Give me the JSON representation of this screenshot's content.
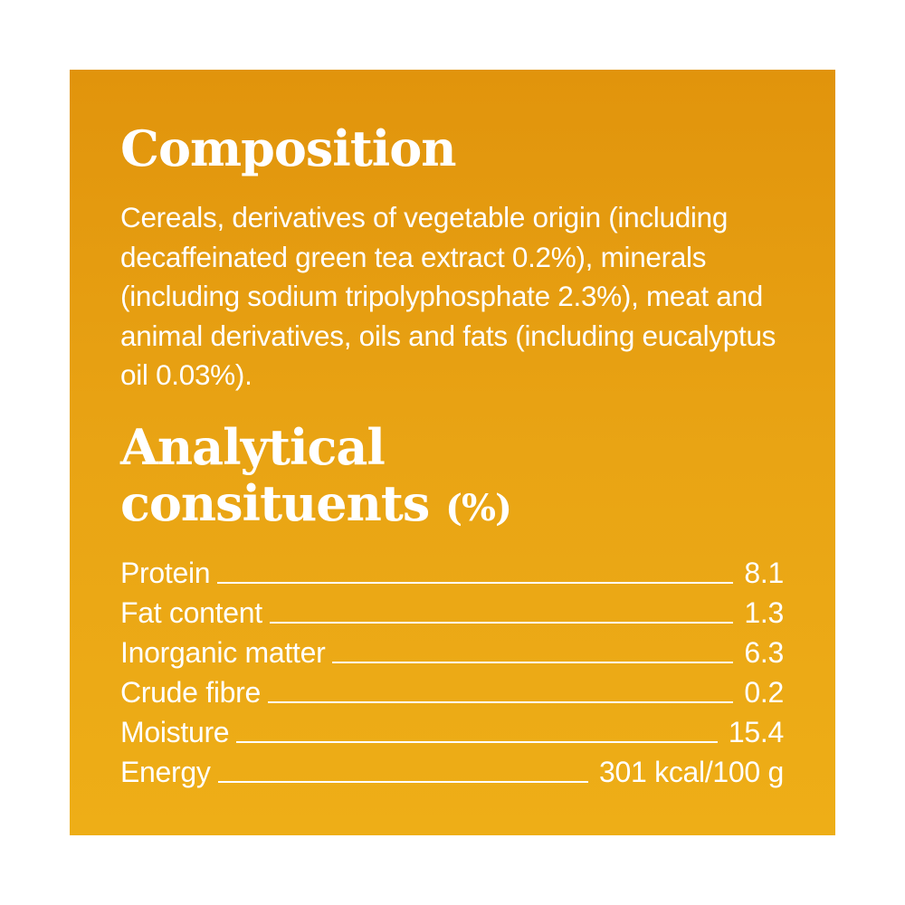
{
  "composition": {
    "title": "Composition",
    "text": "Cereals, derivatives of vegetable origin (including decaffeinated green tea extract 0.2%), minerals (including sodium tripolyphosphate 2.3%), meat and animal derivatives, oils and fats (including eucalyptus oil 0.03%)."
  },
  "analytical": {
    "title_line1": "Analytical",
    "title_line2": "consituents",
    "unit": "(%)",
    "rows": [
      {
        "label": "Protein",
        "value": "8.1"
      },
      {
        "label": "Fat content",
        "value": "1.3"
      },
      {
        "label": "Inorganic matter",
        "value": "6.3"
      },
      {
        "label": "Crude fibre",
        "value": "0.2"
      },
      {
        "label": "Moisture",
        "value": "15.4"
      },
      {
        "label": "Energy",
        "value": "301 kcal/100 g"
      }
    ]
  },
  "colors": {
    "background_top": "#e1940c",
    "background_bottom": "#eeae17",
    "text": "#ffffff"
  }
}
